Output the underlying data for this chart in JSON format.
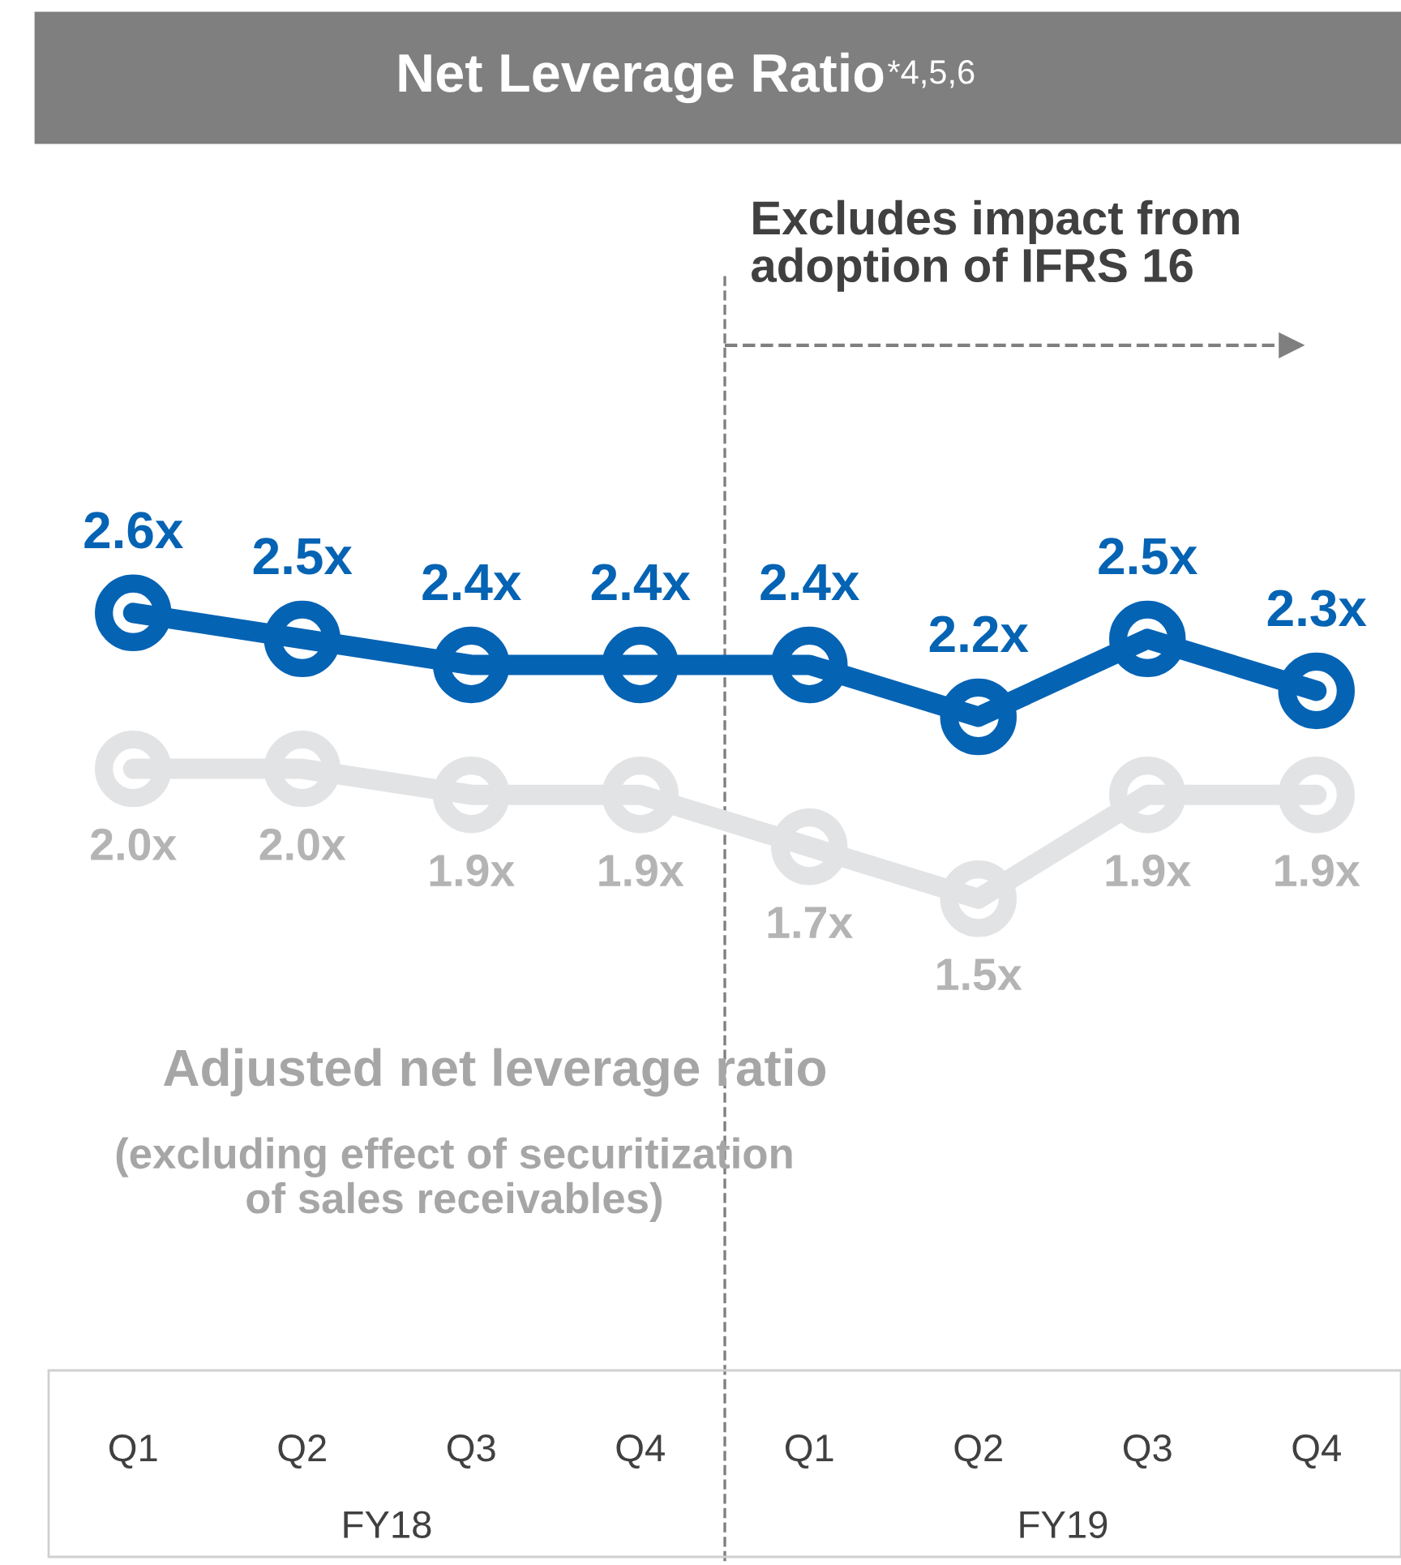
{
  "chart_data": {
    "type": "line",
    "title": "Net Leverage Ratio$^{*4,5,6}$",
    "categories": [
      "Q1",
      "Q2",
      "Q3",
      "Q4",
      "Q1",
      "Q2",
      "Q3",
      "Q4"
    ],
    "series": [
      {
        "color": "#0563b4",
        "values": [
          2.6,
          2.5,
          2.4,
          2.4,
          2.4,
          2.2,
          2.5,
          2.3
        ],
        "value_labels": [
          "2.6x",
          "2.5x",
          "2.4x",
          "2.4x",
          "2.4x",
          "2.2x",
          "2.5x",
          "2.3x"
        ]
      },
      {
        "name": "Adjusted net leverage ratio",
        "color": "#e2e3e5",
        "values": [
          2.0,
          2.0,
          1.9,
          1.9,
          1.7,
          1.5,
          1.9,
          1.9
        ],
        "value_labels": [
          "2.0x",
          "2.0x",
          "1.9x",
          "1.9x",
          "1.7x",
          "1.5x",
          "1.9x",
          "1.9x"
        ]
      }
    ],
    "marker": "circle",
    "line_style": "solid",
    "grid": false,
    "legend": false,
    "tick_labels": "x",
    "annotations": [
      "FY18",
      "FY19",
      "Excludes impact from\nadoption of IFRS 16",
      "(excluding effect of securitization\nof sales receivables)"
    ]
  }
}
